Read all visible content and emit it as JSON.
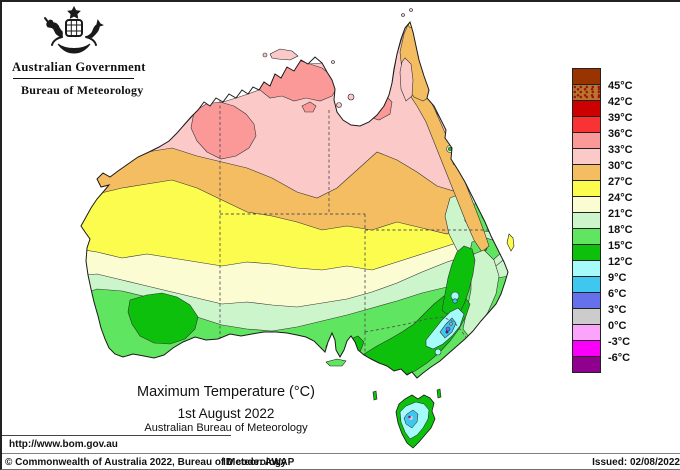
{
  "header": {
    "gov_title": "Australian Government",
    "bureau_title": "Bureau of Meteorology",
    "crest_icon": "australian-coat-of-arms"
  },
  "map": {
    "title": "Maximum Temperature (°C)",
    "date": "1st August 2022",
    "attribution": "Australian Bureau of Meteorology"
  },
  "legend": {
    "unit": "°C",
    "entries": [
      {
        "color": "#993300",
        "label": "45°C",
        "speckled": false
      },
      {
        "color": "#b5762d",
        "label": "42°C",
        "speckled": true
      },
      {
        "color": "#cc0000",
        "label": "39°C",
        "speckled": false
      },
      {
        "color": "#f93333",
        "label": "36°C",
        "speckled": false
      },
      {
        "color": "#fb9999",
        "label": "33°C",
        "speckled": false
      },
      {
        "color": "#fcc9c9",
        "label": "30°C",
        "speckled": false
      },
      {
        "color": "#f5bd62",
        "label": "27°C",
        "speckled": false
      },
      {
        "color": "#fcfc4e",
        "label": "24°C",
        "speckled": false
      },
      {
        "color": "#fcfcd2",
        "label": "21°C",
        "speckled": false
      },
      {
        "color": "#ccf5cc",
        "label": "18°C",
        "speckled": false
      },
      {
        "color": "#5fe55f",
        "label": "15°C",
        "speckled": false
      },
      {
        "color": "#0cc00c",
        "label": "12°C",
        "speckled": false
      },
      {
        "color": "#a5fafa",
        "label": "9°C",
        "speckled": false
      },
      {
        "color": "#3fc8ef",
        "label": "6°C",
        "speckled": false
      },
      {
        "color": "#6470ec",
        "label": "3°C",
        "speckled": false
      },
      {
        "color": "#cccccc",
        "label": "0°C",
        "speckled": false
      },
      {
        "color": "#fba5fa",
        "label": "-3°C",
        "speckled": false
      },
      {
        "color": "#fa00fa",
        "label": "-6°C",
        "speckled": false
      },
      {
        "color": "#8f008f",
        "label": null,
        "speckled": false
      }
    ]
  },
  "palette": {
    "sea": "#ffffff",
    "t33_36": "#fb9999",
    "t30_33": "#fcc9c9",
    "t27_30": "#f5bd62",
    "t24_27": "#fcfc4e",
    "t21_24": "#fcfcd2",
    "t18_21": "#ccf5cc",
    "t15_18": "#5fe55f",
    "t12_15": "#0cc00c",
    "t9_12": "#a5fafa",
    "t6_9": "#3fc8ef",
    "t3_6": "#6470ec",
    "t0_3": "#cccccc",
    "tm6": "#8f008f",
    "coastline": "#1a1a1a",
    "state_border": "#555555"
  },
  "footer": {
    "url": "http://www.bom.gov.au",
    "copyright": "© Commonwealth of Australia 2022, Bureau of Meteorology",
    "id_code": "ID code: AWAP",
    "issued": "Issued: 02/08/2022"
  }
}
